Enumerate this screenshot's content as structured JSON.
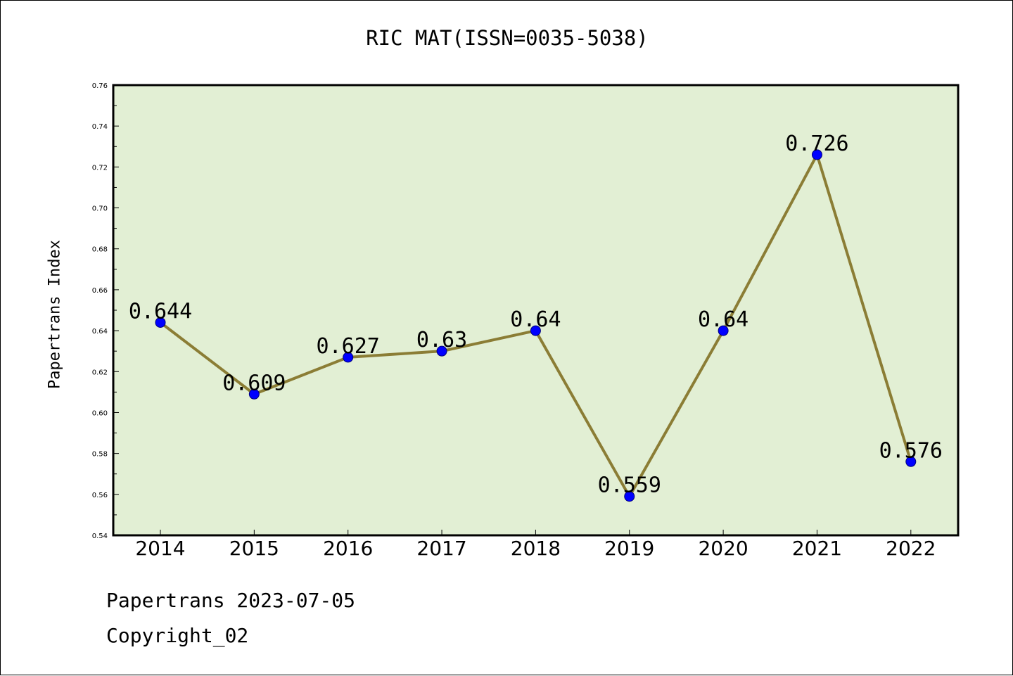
{
  "title": "RIC MAT(ISSN=0035-5038)",
  "footer": {
    "line1": "Papertrans 2023-07-05",
    "line2": "Copyright_02"
  },
  "chart_data": {
    "type": "line",
    "title": "RIC MAT(ISSN=0035-5038)",
    "xlabel": "",
    "ylabel": "Papertrans Index",
    "categories": [
      "2014",
      "2015",
      "2016",
      "2017",
      "2018",
      "2019",
      "2020",
      "2021",
      "2022"
    ],
    "series": [
      {
        "values": [
          0.644,
          0.609,
          0.627,
          0.63,
          0.64,
          0.559,
          0.64,
          0.726,
          0.576
        ],
        "labels": [
          "0.644",
          "0.609",
          "0.627",
          "0.63",
          "0.64",
          "0.559",
          "0.64",
          "0.726",
          "0.576"
        ]
      }
    ],
    "ylim": [
      0.54,
      0.76
    ],
    "yticks": [
      "0.54",
      "0.56",
      "0.58",
      "0.60",
      "0.62",
      "0.64",
      "0.66",
      "0.68",
      "0.70",
      "0.72",
      "0.74",
      "0.76"
    ],
    "grid": false,
    "colors": {
      "plot_background": "#e2efd4",
      "line": "#8b7d35",
      "marker": "#0000ff"
    }
  }
}
